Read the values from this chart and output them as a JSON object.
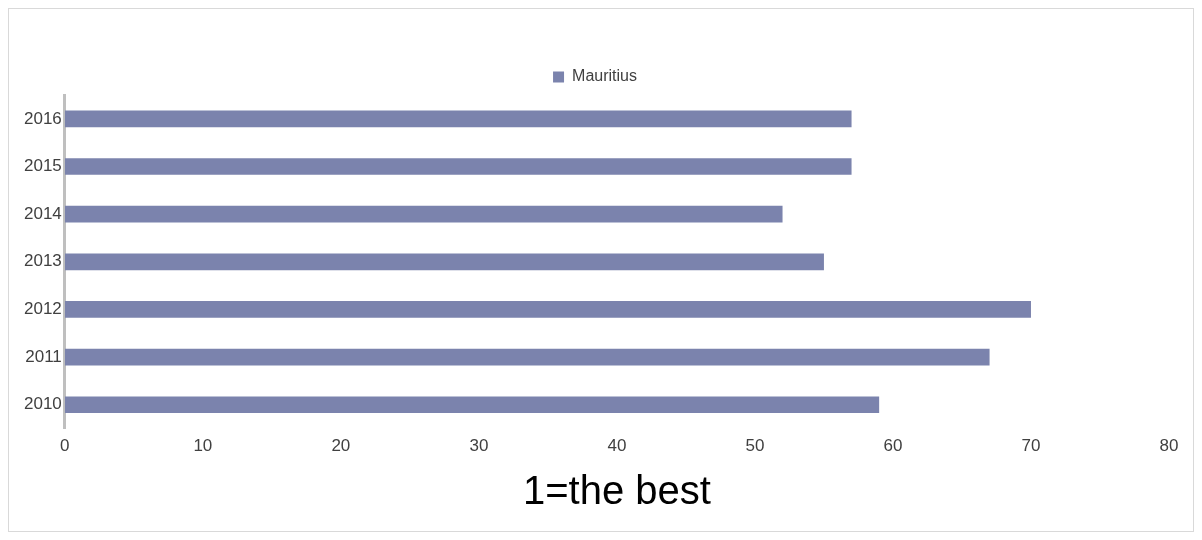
{
  "chart_data": {
    "type": "bar",
    "orientation": "horizontal",
    "xlabel": "1=the best",
    "categories": [
      "2016",
      "2015",
      "2014",
      "2013",
      "2012",
      "2011",
      "2010"
    ],
    "series": [
      {
        "name": "Mauritius",
        "color": "#7b83ad",
        "values": [
          57,
          57,
          52,
          55,
          70,
          67,
          59
        ]
      }
    ],
    "xlim": [
      0,
      80
    ],
    "xticks": [
      0,
      10,
      20,
      30,
      40,
      50,
      60,
      70,
      80
    ],
    "grid": false,
    "legend": "top"
  }
}
